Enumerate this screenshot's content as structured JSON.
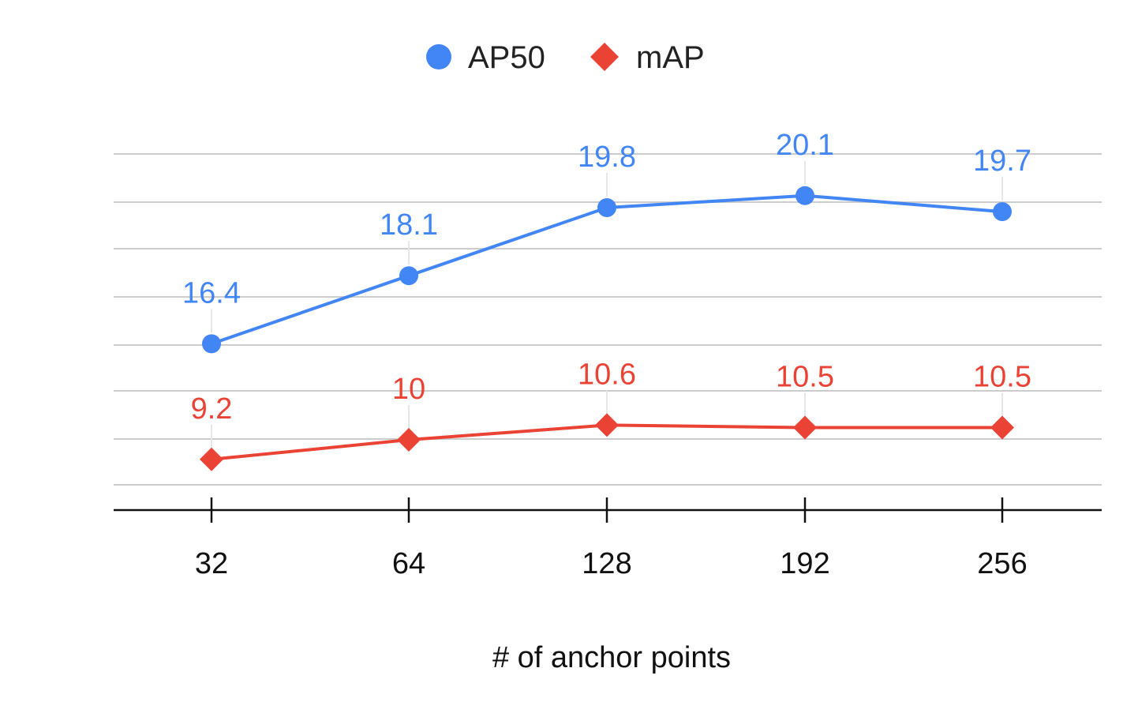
{
  "chart_data": {
    "type": "line",
    "categories": [
      "32",
      "64",
      "128",
      "192",
      "256"
    ],
    "xlabel": "# of anchor points",
    "ylabel": "",
    "legend_position": "top",
    "grid": true,
    "colors": {
      "AP50": "#4285f4",
      "mAP": "#ea4335"
    },
    "series": [
      {
        "name": "AP50",
        "marker": "circle",
        "values": [
          16.4,
          18.1,
          19.8,
          20.1,
          19.7
        ]
      },
      {
        "name": "mAP",
        "marker": "diamond",
        "values": [
          9.2,
          10,
          10.6,
          10.5,
          10.5
        ]
      }
    ]
  }
}
